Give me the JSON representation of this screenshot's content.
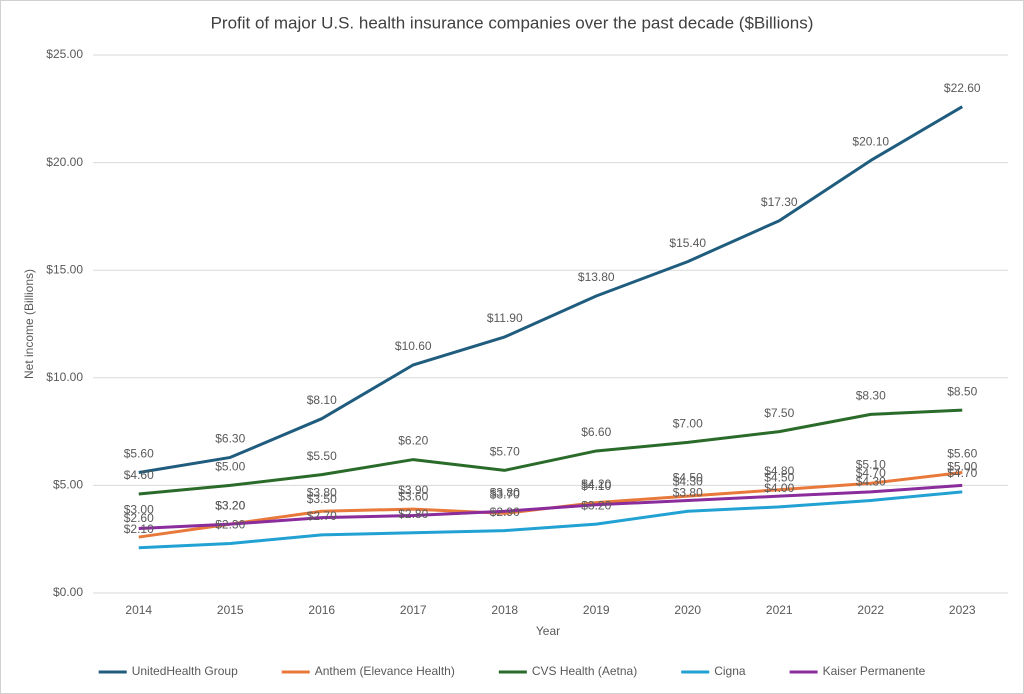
{
  "chart_data": {
    "type": "line",
    "title": "Profit of major U.S. health insurance companies over the past decade ($Billions)",
    "x_label": "Year",
    "y_label": "Net income (Billions)",
    "categories": [
      "2014",
      "2015",
      "2016",
      "2017",
      "2018",
      "2019",
      "2020",
      "2021",
      "2022",
      "2023"
    ],
    "ylim": [
      0,
      25
    ],
    "yticks": [
      {
        "value": 0,
        "label": "$0.00"
      },
      {
        "value": 5,
        "label": "$5.00"
      },
      {
        "value": 10,
        "label": "$10.00"
      },
      {
        "value": 15,
        "label": "$15.00"
      },
      {
        "value": 20,
        "label": "$20.00"
      },
      {
        "value": 25,
        "label": "$25.00"
      }
    ],
    "grid": true,
    "legend": "bottom",
    "series": [
      {
        "name": "UnitedHealth Group",
        "color": "#1f5c7e",
        "values": [
          5.6,
          6.3,
          8.1,
          10.6,
          11.9,
          13.8,
          15.4,
          17.3,
          20.1,
          22.6
        ],
        "value_labels": [
          "$5.60",
          "$6.30",
          "$8.10",
          "$10.60",
          "$11.90",
          "$13.80",
          "$15.40",
          "$17.30",
          "$20.10",
          "$22.60"
        ]
      },
      {
        "name": "Anthem (Elevance Health)",
        "color": "#e8793a",
        "values": [
          2.6,
          3.2,
          3.8,
          3.9,
          3.7,
          4.2,
          4.5,
          4.8,
          5.1,
          5.6
        ],
        "value_labels": [
          "$2.60",
          "$3.20",
          "$3.80",
          "$3.90",
          "$3.70",
          "$4.20",
          "$4.50",
          "$4.80",
          "$5.10",
          "$5.60"
        ]
      },
      {
        "name": "CVS Health (Aetna)",
        "color": "#2a6b2a",
        "values": [
          4.6,
          5.0,
          5.5,
          6.2,
          5.7,
          6.6,
          7.0,
          7.5,
          8.3,
          8.5
        ],
        "value_labels": [
          "$4.60",
          "$5.00",
          "$5.50",
          "$6.20",
          "$5.70",
          "$6.60",
          "$7.00",
          "$7.50",
          "$8.30",
          "$8.50"
        ]
      },
      {
        "name": "Cigna",
        "color": "#22a2d3",
        "values": [
          2.1,
          2.3,
          2.7,
          2.8,
          2.9,
          3.2,
          3.8,
          4.0,
          4.3,
          4.7
        ],
        "value_labels": [
          "$2.10",
          "$2.30",
          "$2.70",
          "$2.80",
          "$2.90",
          "$3.20",
          "$3.80",
          "$4.00",
          "$4.30",
          "$4.70"
        ]
      },
      {
        "name": "Kaiser Permanente",
        "color": "#8a2c9c",
        "values": [
          3.0,
          3.2,
          3.5,
          3.6,
          3.8,
          4.1,
          4.3,
          4.5,
          4.7,
          5.0
        ],
        "value_labels": [
          "$3.00",
          "$3.20",
          "$3.50",
          "$3.60",
          "$3.80",
          "$4.10",
          "$4.30",
          "$4.50",
          "$4.70",
          "$5.00"
        ]
      }
    ]
  }
}
